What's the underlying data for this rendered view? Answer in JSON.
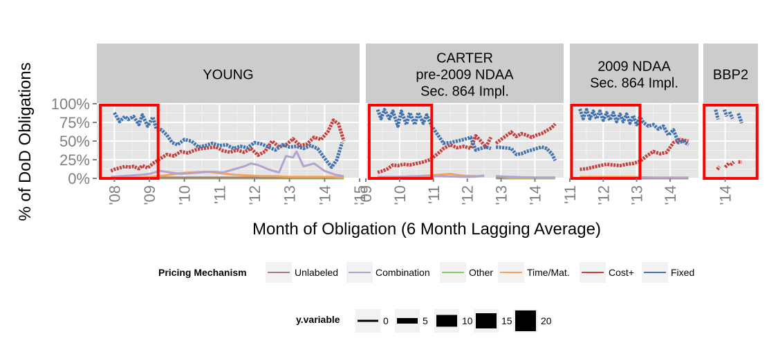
{
  "chart_data": {
    "type": "line",
    "xlabel": "Month of Obligation (6 Month Lagging Average)",
    "ylabel": "% of DoD Obligations",
    "ylim": [
      0,
      1
    ],
    "y_ticks": [
      "0%",
      "25%",
      "50%",
      "75%",
      "100%"
    ],
    "y_tick_values": [
      0,
      0.25,
      0.5,
      0.75,
      1
    ],
    "grid": true,
    "legend_position": "bottom",
    "colors": {
      "Unlabeled": "#A6797D",
      "Combination": "#B3A3CC",
      "Other": "#8ACC63",
      "Time/Mat.": "#F5A25A",
      "Cost+": "#C2413F",
      "Fixed": "#4273AC"
    },
    "facets": [
      {
        "id": "young",
        "label": [
          "YOUNG"
        ],
        "x_range": [
          2007.5,
          2015.0
        ],
        "x_ticks": [
          {
            "v": 2008,
            "t": "'08"
          },
          {
            "v": 2009,
            "t": "'09"
          },
          {
            "v": 2010,
            "t": "'10"
          },
          {
            "v": 2011,
            "t": "'11"
          },
          {
            "v": 2012,
            "t": "'12"
          },
          {
            "v": 2013,
            "t": "'13"
          },
          {
            "v": 2014,
            "t": "'14"
          },
          {
            "v": 2015,
            "t": "'15"
          }
        ],
        "highlight": [
          2007.6,
          2009.25
        ],
        "series": [
          {
            "name": "Fixed",
            "x": [
              2007.9,
              2008.0,
              2008.15,
              2008.3,
              2008.4,
              2008.55,
              2008.7,
              2008.8,
              2008.95,
              2009.1,
              2009.2,
              2009.35,
              2009.5,
              2009.65,
              2009.8,
              2010.0,
              2010.2,
              2010.4,
              2010.6,
              2010.8,
              2011.0,
              2011.2,
              2011.4,
              2011.6,
              2011.8,
              2012.0,
              2012.2,
              2012.4,
              2012.6,
              2012.8,
              2013.0,
              2013.2,
              2013.4,
              2013.6,
              2013.8,
              2014.0,
              2014.2,
              2014.35,
              2014.5
            ],
            "y": [
              0.72,
              0.88,
              0.76,
              0.83,
              0.79,
              0.83,
              0.72,
              0.85,
              0.7,
              0.82,
              0.66,
              0.65,
              0.58,
              0.48,
              0.45,
              0.52,
              0.5,
              0.42,
              0.44,
              0.47,
              0.44,
              0.45,
              0.4,
              0.43,
              0.41,
              0.48,
              0.46,
              0.42,
              0.38,
              0.45,
              0.42,
              0.43,
              0.4,
              0.44,
              0.4,
              0.27,
              0.15,
              0.25,
              0.48
            ],
            "gaps": [
              0.85,
              1.0,
              1.1
            ]
          },
          {
            "name": "Cost+",
            "x": [
              2007.9,
              2008.0,
              2008.15,
              2008.3,
              2008.4,
              2008.55,
              2008.7,
              2008.8,
              2008.95,
              2009.1,
              2009.3,
              2009.5,
              2009.7,
              2009.9,
              2010.1,
              2010.3,
              2010.5,
              2010.7,
              2010.9,
              2011.1,
              2011.3,
              2011.5,
              2011.7,
              2011.9,
              2012.1,
              2012.3,
              2012.5,
              2012.7,
              2012.9,
              2013.1,
              2013.3,
              2013.5,
              2013.7,
              2013.9,
              2014.1,
              2014.25,
              2014.4,
              2014.55
            ],
            "y": [
              0.1,
              0.12,
              0.14,
              0.16,
              0.15,
              0.16,
              0.13,
              0.17,
              0.14,
              0.2,
              0.26,
              0.32,
              0.3,
              0.36,
              0.34,
              0.38,
              0.4,
              0.41,
              0.42,
              0.37,
              0.35,
              0.38,
              0.35,
              0.4,
              0.31,
              0.36,
              0.5,
              0.42,
              0.45,
              0.53,
              0.44,
              0.46,
              0.55,
              0.52,
              0.63,
              0.78,
              0.73,
              0.5
            ]
          },
          {
            "name": "Combination",
            "x": [
              2007.9,
              2008.2,
              2008.5,
              2008.8,
              2009.0,
              2009.3,
              2009.6,
              2009.9,
              2010.2,
              2010.5,
              2010.8,
              2011.1,
              2011.4,
              2011.7,
              2011.9,
              2012.1,
              2012.4,
              2012.7,
              2012.9,
              2013.1,
              2013.2,
              2013.4,
              2013.7,
              2014.0,
              2014.3,
              2014.55
            ],
            "y": [
              0.02,
              0.03,
              0.04,
              0.05,
              0.06,
              0.1,
              0.08,
              0.06,
              0.07,
              0.08,
              0.09,
              0.08,
              0.12,
              0.16,
              0.2,
              0.18,
              0.12,
              0.08,
              0.3,
              0.28,
              0.36,
              0.16,
              0.2,
              0.1,
              0.05,
              0.03
            ]
          },
          {
            "name": "Time/Mat.",
            "x": [
              2007.9,
              2008.5,
              2009.0,
              2009.3,
              2009.6,
              2009.9,
              2010.2,
              2010.6,
              2011.0,
              2011.4,
              2011.8,
              2012.2,
              2012.6,
              2013.0,
              2013.4,
              2013.8,
              2014.2,
              2014.55
            ],
            "y": [
              0.01,
              0.01,
              0.02,
              0.03,
              0.05,
              0.07,
              0.08,
              0.09,
              0.07,
              0.05,
              0.04,
              0.03,
              0.03,
              0.02,
              0.02,
              0.02,
              0.02,
              0.01
            ]
          },
          {
            "name": "Unlabeled",
            "x": [
              2007.9,
              2009.0,
              2010.0,
              2011.0,
              2012.0,
              2013.0,
              2014.0,
              2014.55
            ],
            "y": [
              0.01,
              0.01,
              0.01,
              0.01,
              0.01,
              0.01,
              0.01,
              0.01
            ]
          },
          {
            "name": "Other",
            "x": [
              2007.9,
              2009.0,
              2010.0,
              2011.0,
              2012.0,
              2013.0,
              2014.0,
              2014.55
            ],
            "y": [
              0.0,
              0.0,
              0.0,
              0.0,
              0.0,
              0.0,
              0.0,
              0.0
            ]
          }
        ]
      },
      {
        "id": "carter",
        "label": [
          "CARTER",
          "pre-2009 NDAA",
          "Sec. 864 Impl."
        ],
        "x_range": [
          2009.0,
          2014.85
        ],
        "x_ticks": [
          {
            "v": 2009,
            "t": "'09"
          },
          {
            "v": 2010,
            "t": "'10"
          },
          {
            "v": 2011,
            "t": "'11"
          },
          {
            "v": 2012,
            "t": "'12"
          },
          {
            "v": 2013,
            "t": "'13"
          },
          {
            "v": 2014,
            "t": "'14"
          }
        ],
        "highlight": [
          2009.1,
          2010.95
        ],
        "series": [
          {
            "name": "Fixed",
            "x": [
              2009.35,
              2009.45,
              2009.55,
              2009.7,
              2009.8,
              2009.95,
              2010.05,
              2010.2,
              2010.3,
              2010.45,
              2010.55,
              2010.7,
              2010.8,
              2010.95,
              2011.1,
              2011.3,
              2011.5,
              2011.7,
              2011.9,
              2012.1,
              2012.25,
              2012.4,
              2012.55,
              2012.7,
              2012.85,
              2013.3,
              2013.45,
              2013.6,
              2013.75,
              2013.9,
              2014.05,
              2014.2,
              2014.35,
              2014.5,
              2014.6
            ],
            "y": [
              0.92,
              0.8,
              0.92,
              0.8,
              0.9,
              0.7,
              0.9,
              0.72,
              0.88,
              0.72,
              0.88,
              0.74,
              0.85,
              0.7,
              0.6,
              0.47,
              0.48,
              0.5,
              0.52,
              0.55,
              0.38,
              0.4,
              0.42,
              0.4,
              0.42,
              0.4,
              0.32,
              0.33,
              0.36,
              0.38,
              0.4,
              0.42,
              0.4,
              0.33,
              0.24
            ],
            "gaps": [
              24
            ]
          },
          {
            "name": "Cost+",
            "x": [
              2009.35,
              2009.5,
              2009.65,
              2009.8,
              2009.95,
              2010.1,
              2010.3,
              2010.5,
              2010.7,
              2010.9,
              2011.1,
              2011.3,
              2011.5,
              2011.7,
              2011.9,
              2012.1,
              2012.25,
              2012.4,
              2012.55,
              2012.7,
              2012.85,
              2013.3,
              2013.45,
              2013.6,
              2013.75,
              2013.9,
              2014.05,
              2014.2,
              2014.35,
              2014.5,
              2014.6
            ],
            "y": [
              0.08,
              0.1,
              0.13,
              0.18,
              0.17,
              0.19,
              0.18,
              0.2,
              0.22,
              0.25,
              0.32,
              0.4,
              0.45,
              0.41,
              0.43,
              0.4,
              0.57,
              0.5,
              0.42,
              0.55,
              0.47,
              0.62,
              0.56,
              0.6,
              0.58,
              0.55,
              0.58,
              0.6,
              0.64,
              0.68,
              0.73
            ],
            "gaps": [
              20
            ]
          },
          {
            "name": "Combination",
            "x": [
              2009.35,
              2010.0,
              2010.6,
              2011.2,
              2011.8,
              2012.2,
              2012.5,
              2012.85,
              2013.3,
              2014.0,
              2014.6
            ],
            "y": [
              0.02,
              0.02,
              0.03,
              0.03,
              0.02,
              0.02,
              0.04,
              0.03,
              0.02,
              0.01,
              0.01
            ],
            "gaps": [
              7
            ]
          },
          {
            "name": "Time/Mat.",
            "x": [
              2009.35,
              2010.0,
              2010.6,
              2011.2,
              2011.5,
              2011.8,
              2012.2,
              2012.5,
              2012.85,
              2013.3,
              2014.0,
              2014.6
            ],
            "y": [
              0.01,
              0.02,
              0.03,
              0.05,
              0.06,
              0.04,
              0.03,
              0.03,
              0.03,
              0.01,
              0.01,
              0.01
            ],
            "gaps": [
              8
            ]
          },
          {
            "name": "Unlabeled",
            "x": [
              2009.35,
              2011.0,
              2012.85,
              2013.3,
              2014.6
            ],
            "y": [
              0.01,
              0.01,
              0.01,
              0.01,
              0.01
            ],
            "gaps": [
              2
            ]
          },
          {
            "name": "Other",
            "x": [
              2009.35,
              2011.0,
              2012.85,
              2013.3,
              2014.6
            ],
            "y": [
              0.0,
              0.0,
              0.0,
              0.0,
              0.0
            ],
            "gaps": [
              2
            ]
          }
        ]
      },
      {
        "id": "ndaa2009",
        "label": [
          "2009 NDAA",
          "Sec. 864 Impl."
        ],
        "x_range": [
          2011.0,
          2014.85
        ],
        "x_ticks": [
          {
            "v": 2011,
            "t": "'11"
          },
          {
            "v": 2012,
            "t": "'12"
          },
          {
            "v": 2013,
            "t": "'13"
          },
          {
            "v": 2014,
            "t": "'14"
          }
        ],
        "highlight": [
          2011.05,
          2013.1
        ],
        "series": [
          {
            "name": "Fixed",
            "x": [
              2011.3,
              2011.4,
              2011.5,
              2011.6,
              2011.7,
              2011.8,
              2011.9,
              2012.0,
              2012.1,
              2012.2,
              2012.3,
              2012.4,
              2012.5,
              2012.6,
              2012.7,
              2012.8,
              2012.9,
              2013.0,
              2013.1,
              2013.2,
              2013.35,
              2013.5,
              2013.65,
              2013.8,
              2013.95,
              2014.1,
              2014.25,
              2014.4,
              2014.55
            ],
            "y": [
              0.93,
              0.8,
              0.92,
              0.8,
              0.9,
              0.8,
              0.9,
              0.78,
              0.88,
              0.78,
              0.88,
              0.76,
              0.86,
              0.76,
              0.86,
              0.74,
              0.84,
              0.72,
              0.82,
              0.75,
              0.7,
              0.72,
              0.66,
              0.7,
              0.58,
              0.65,
              0.48,
              0.5,
              0.45
            ]
          },
          {
            "name": "Cost+",
            "x": [
              2011.3,
              2011.5,
              2011.7,
              2011.9,
              2012.1,
              2012.3,
              2012.5,
              2012.7,
              2012.9,
              2013.1,
              2013.3,
              2013.5,
              2013.7,
              2013.9,
              2014.1,
              2014.3,
              2014.55
            ],
            "y": [
              0.12,
              0.13,
              0.15,
              0.17,
              0.19,
              0.18,
              0.17,
              0.19,
              0.2,
              0.23,
              0.3,
              0.36,
              0.33,
              0.35,
              0.48,
              0.52,
              0.5
            ]
          },
          {
            "name": "Time/Mat.",
            "x": [
              2011.3,
              2012.0,
              2012.8,
              2013.5,
              2014.55
            ],
            "y": [
              0.02,
              0.02,
              0.02,
              0.01,
              0.01
            ]
          },
          {
            "name": "Combination",
            "x": [
              2011.3,
              2012.5,
              2013.5,
              2014.55
            ],
            "y": [
              0.01,
              0.01,
              0.01,
              0.01
            ]
          },
          {
            "name": "Unlabeled",
            "x": [
              2011.3,
              2014.55
            ],
            "y": [
              0.005,
              0.005
            ]
          },
          {
            "name": "Other",
            "x": [
              2011.3,
              2014.55
            ],
            "y": [
              0.0,
              0.0
            ]
          }
        ]
      },
      {
        "id": "bbp2",
        "label": [
          "BBP2"
        ],
        "x_range": [
          2013.5,
          2014.75
        ],
        "x_ticks": [
          {
            "v": 2014,
            "t": "'14"
          }
        ],
        "highlight": [
          2013.52,
          2014.73
        ],
        "series": [
          {
            "name": "Fixed",
            "x": [
              2013.78,
              2013.84,
              2013.98,
              2014.04,
              2014.1,
              2014.17,
              2014.3,
              2014.38
            ],
            "y": [
              0.92,
              0.79,
              0.92,
              0.83,
              0.89,
              0.8,
              0.87,
              0.74
            ],
            "gaps": [
              2,
              4,
              6
            ]
          },
          {
            "name": "Cost+",
            "x": [
              2013.82,
              2013.87,
              2014.0,
              2014.08,
              2014.12,
              2014.2,
              2014.3,
              2014.38
            ],
            "y": [
              0.12,
              0.16,
              0.15,
              0.2,
              0.18,
              0.22,
              0.22,
              0.22
            ],
            "gaps": [
              2,
              4,
              6
            ]
          }
        ]
      }
    ],
    "legend": {
      "pricing_title": "Pricing Mechanism",
      "pricing_entries": [
        "Unlabeled",
        "Combination",
        "Other",
        "Time/Mat.",
        "Cost+",
        "Fixed"
      ],
      "size_title": "y.variable",
      "size_entries": [
        "0",
        "5",
        "10",
        "15",
        "20"
      ]
    }
  }
}
